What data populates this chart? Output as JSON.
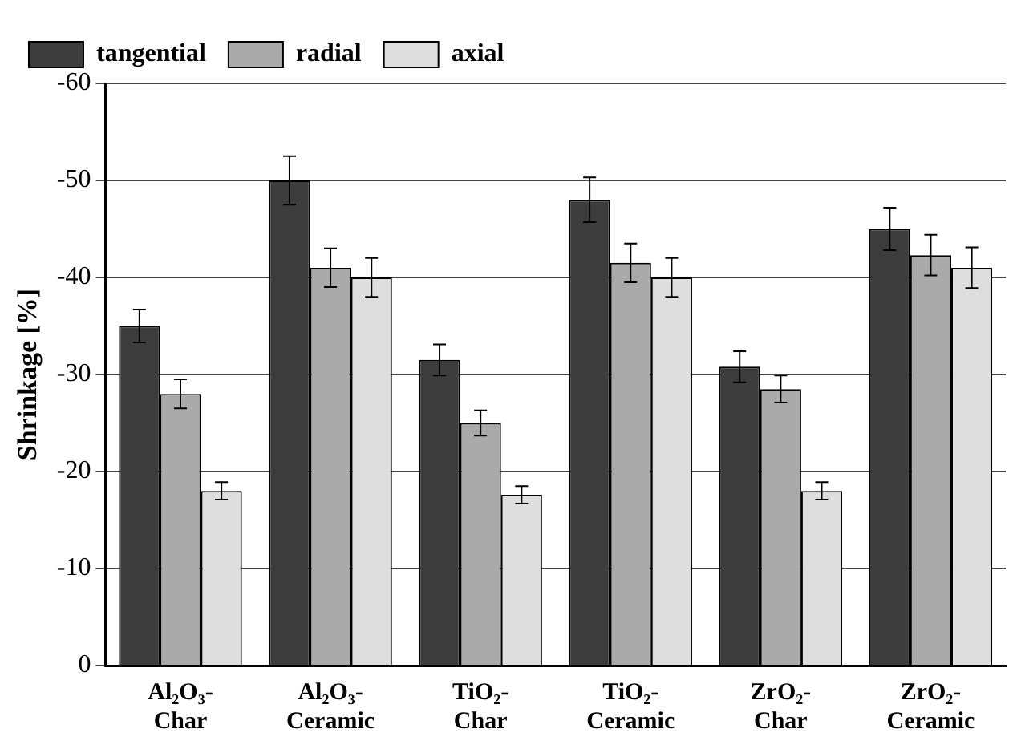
{
  "chart_data": {
    "type": "bar",
    "ylabel": "Shrinkage [%]",
    "categories": [
      "Al₂O₃-Char",
      "Al₂O₃-Ceramic",
      "TiO₂-Char",
      "TiO₂-Ceramic",
      "ZrO₂-Char",
      "ZrO₂-Ceramic"
    ],
    "series": [
      {
        "name": "tangential",
        "color": "#3c3c3c",
        "values": [
          -35,
          -50,
          -31.5,
          -48,
          -30.8,
          -45
        ],
        "errors": [
          1.7,
          2.5,
          1.6,
          2.3,
          1.6,
          2.2
        ]
      },
      {
        "name": "radial",
        "color": "#aaaaaa",
        "values": [
          -28,
          -41,
          -25,
          -41.5,
          -28.5,
          -42.3
        ],
        "errors": [
          1.5,
          2,
          1.3,
          2,
          1.4,
          2.1
        ]
      },
      {
        "name": "axial",
        "color": "#dedede",
        "values": [
          -18,
          -40,
          -17.6,
          -40,
          -18,
          -41
        ],
        "errors": [
          0.9,
          2,
          0.9,
          2,
          0.9,
          2.1
        ]
      }
    ],
    "ylim": [
      0,
      -60
    ],
    "yticks": [
      0,
      -10,
      -20,
      -30,
      -40,
      -50,
      -60
    ],
    "grid": "y",
    "legend": "top left"
  }
}
